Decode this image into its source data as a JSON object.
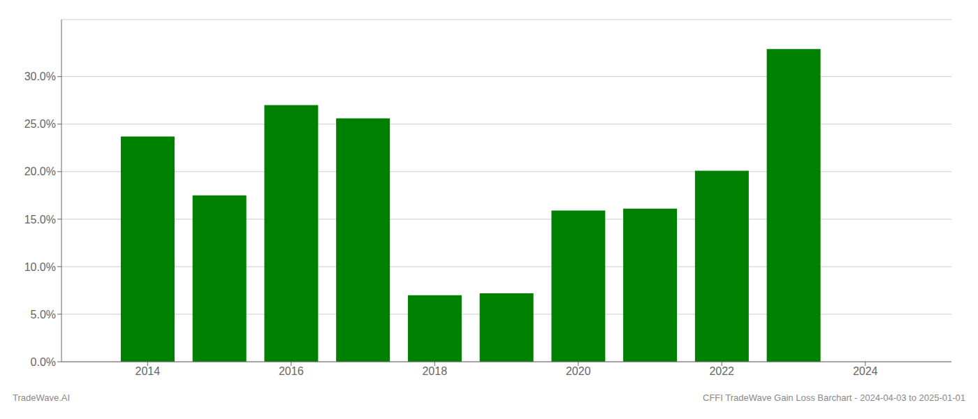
{
  "chart_data": {
    "type": "bar",
    "x": [
      2014,
      2015,
      2016,
      2017,
      2018,
      2019,
      2020,
      2021,
      2022,
      2023
    ],
    "values": [
      0.237,
      0.175,
      0.27,
      0.256,
      0.07,
      0.072,
      0.159,
      0.161,
      0.201,
      0.329
    ],
    "color": "#008000",
    "xlim": [
      2012.8,
      2025.2
    ],
    "xticks": [
      2014,
      2016,
      2018,
      2020,
      2022,
      2024
    ],
    "ylim": [
      0,
      0.36
    ],
    "yticks": [
      {
        "value": 0,
        "label": "0.0%"
      },
      {
        "value": 0.05,
        "label": "5.0%"
      },
      {
        "value": 0.1,
        "label": "10.0%"
      },
      {
        "value": 0.15,
        "label": "15.0%"
      },
      {
        "value": 0.2,
        "label": "20.0%"
      },
      {
        "value": 0.25,
        "label": "25.0%"
      },
      {
        "value": 0.3,
        "label": "30.0%"
      }
    ],
    "grid": true,
    "annotations": [
      "TradeWave.AI",
      "CFFI TradeWave Gain Loss Barchart - 2024-04-03 to 2025-01-01"
    ]
  }
}
